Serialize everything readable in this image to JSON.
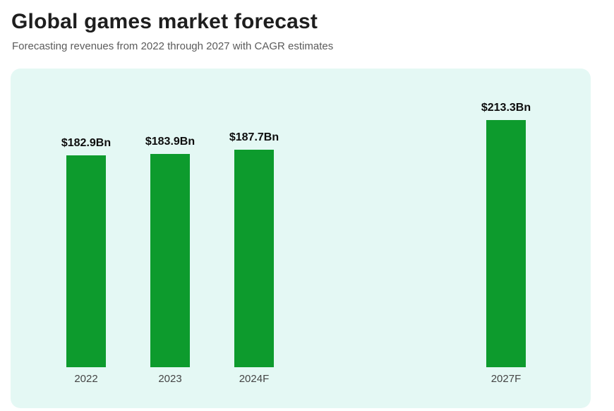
{
  "header": {
    "title": "Global games market forecast",
    "subtitle": "Forecasting revenues from 2022 through 2027 with CAGR estimates"
  },
  "chart_data": {
    "type": "bar",
    "title": "Global games market forecast",
    "subtitle": "Forecasting revenues from 2022 through 2027 with CAGR estimates",
    "categories": [
      "2022",
      "2023",
      "2024F",
      "2027F"
    ],
    "x_years": [
      2022,
      2023,
      2024,
      2027
    ],
    "values": [
      182.9,
      183.9,
      187.7,
      213.3
    ],
    "value_labels": [
      "$182.9Bn",
      "$183.9Bn",
      "$187.7Bn",
      "$213.3Bn"
    ],
    "xlabel": "",
    "ylabel": "",
    "ylim": [
      0,
      230
    ],
    "grid": false,
    "legend": "none",
    "bar_color": "#0d9b2d",
    "panel_background": "#e4f8f4"
  }
}
